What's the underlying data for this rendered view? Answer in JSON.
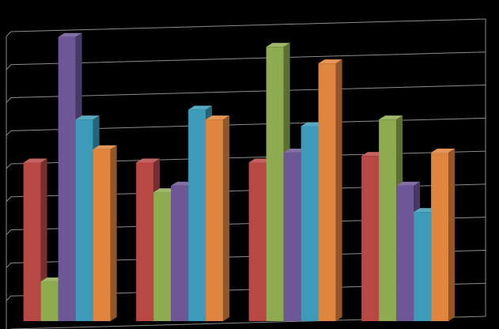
{
  "chart_data": {
    "type": "bar",
    "title": "",
    "xlabel": "",
    "ylabel": "",
    "ylim": [
      0,
      9
    ],
    "grid": true,
    "legend": "none",
    "three_d": true,
    "categories": [
      "",
      "",
      "",
      ""
    ],
    "series": [
      {
        "color": "#b84746",
        "values": [
          4.8,
          4.8,
          4.8,
          5.0
        ]
      },
      {
        "color": "#8fab4f",
        "values": [
          1.2,
          3.9,
          8.3,
          6.1
        ]
      },
      {
        "color": "#6e5796",
        "values": [
          8.6,
          4.1,
          5.1,
          4.1
        ]
      },
      {
        "color": "#3b9bb8",
        "values": [
          6.1,
          6.4,
          5.9,
          3.3
        ]
      },
      {
        "color": "#e0853d",
        "values": [
          5.2,
          6.1,
          7.8,
          5.1
        ]
      }
    ]
  },
  "style": {
    "background": "#000000",
    "wall": "#000000",
    "gridline": "#8c8c8c"
  }
}
